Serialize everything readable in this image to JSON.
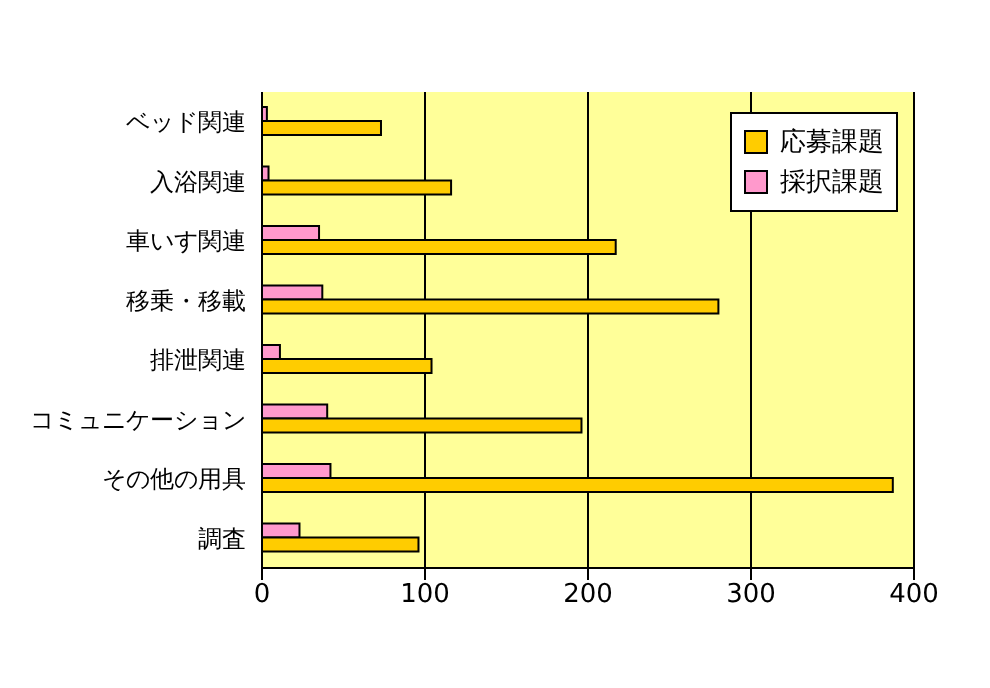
{
  "chart_data": {
    "type": "bar",
    "orientation": "horizontal",
    "categories": [
      "ベッド関連",
      "入浴関連",
      "車いす関連",
      "移乗・移載",
      "排泄関連",
      "コミュニケーション",
      "その他の用具",
      "調査"
    ],
    "series": [
      {
        "name": "応募課題",
        "color": "#ffcc00",
        "values": [
          73,
          116,
          217,
          280,
          104,
          196,
          387,
          96
        ]
      },
      {
        "name": "採択課題",
        "color": "#ff99cc",
        "values": [
          3,
          4,
          35,
          37,
          11,
          40,
          42,
          23
        ]
      }
    ],
    "xlim": [
      0,
      400
    ],
    "xticks": [
      0,
      100,
      200,
      300,
      400
    ],
    "grid": "x",
    "legend": "top right"
  }
}
